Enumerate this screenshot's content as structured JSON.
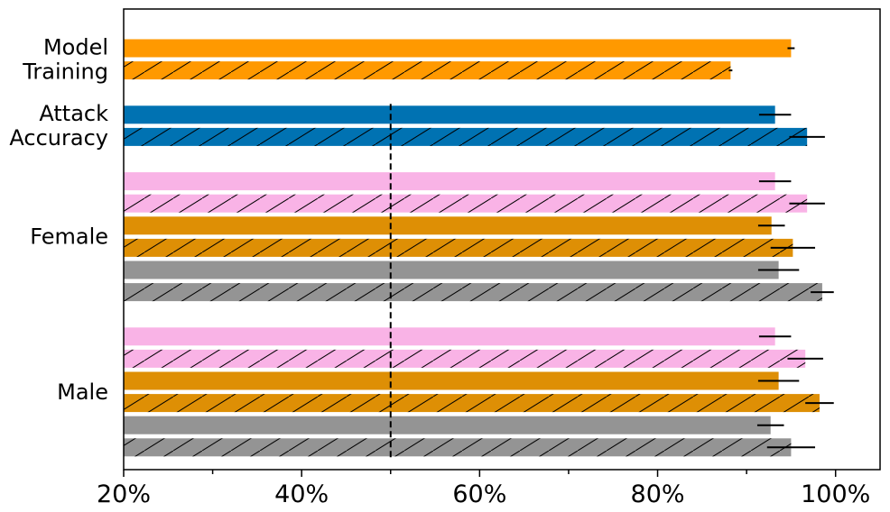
{
  "chart_data": {
    "type": "bar",
    "orientation": "horizontal",
    "xlim": [
      20,
      105
    ],
    "x_ticks": [
      20,
      40,
      60,
      80,
      100
    ],
    "x_tick_labels": [
      "20%",
      "40%",
      "60%",
      "80%",
      "100%"
    ],
    "reference_line": {
      "x": 50,
      "style": "dashed",
      "color": "#000000"
    },
    "groups": [
      {
        "label": "Model\nTraining",
        "bars": [
          {
            "value": 95.0,
            "error": 0.4,
            "color": "#ff9900",
            "hatched": false
          },
          {
            "value": 88.2,
            "error": 0.2,
            "color": "#ff9900",
            "hatched": true
          }
        ]
      },
      {
        "label": "Attack\nAccuracy",
        "bars": [
          {
            "value": 93.2,
            "error": 1.8,
            "color": "#0072b2",
            "hatched": false
          },
          {
            "value": 96.8,
            "error": 2.0,
            "color": "#0072b2",
            "hatched": true
          }
        ]
      },
      {
        "label": "Female",
        "bars": [
          {
            "value": 93.2,
            "error": 1.8,
            "color": "#f9b3e6",
            "hatched": false
          },
          {
            "value": 96.8,
            "error": 2.0,
            "color": "#f9b3e6",
            "hatched": true
          },
          {
            "value": 92.8,
            "error": 1.5,
            "color": "#de8f05",
            "hatched": false
          },
          {
            "value": 95.2,
            "error": 2.5,
            "color": "#de8f05",
            "hatched": true
          },
          {
            "value": 93.6,
            "error": 2.3,
            "color": "#949494",
            "hatched": false
          },
          {
            "value": 98.5,
            "error": 1.3,
            "color": "#949494",
            "hatched": true
          }
        ]
      },
      {
        "label": "Male",
        "bars": [
          {
            "value": 93.2,
            "error": 1.8,
            "color": "#f9b3e6",
            "hatched": false
          },
          {
            "value": 96.6,
            "error": 2.0,
            "color": "#f9b3e6",
            "hatched": true
          },
          {
            "value": 93.6,
            "error": 2.3,
            "color": "#de8f05",
            "hatched": false
          },
          {
            "value": 98.2,
            "error": 1.6,
            "color": "#de8f05",
            "hatched": true
          },
          {
            "value": 92.7,
            "error": 1.5,
            "color": "#949494",
            "hatched": false
          },
          {
            "value": 95.0,
            "error": 2.7,
            "color": "#949494",
            "hatched": true
          }
        ]
      }
    ],
    "grid": false,
    "legend": "none"
  }
}
